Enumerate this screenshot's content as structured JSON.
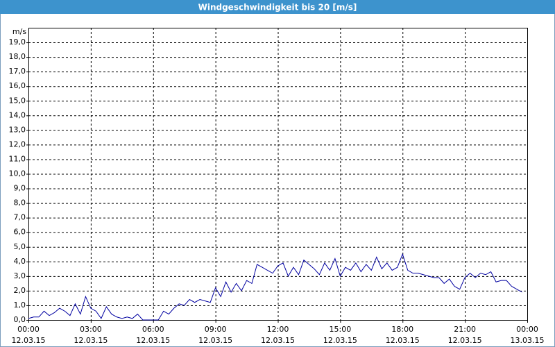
{
  "chart_data": {
    "type": "line",
    "title": "Windgeschwindigkeit bis 20 [m/s]",
    "ylabel": "m/s",
    "x": [
      "12.03.15 00:00",
      "12.03.15 00:15",
      "12.03.15 00:30",
      "12.03.15 00:45",
      "12.03.15 01:00",
      "12.03.15 01:15",
      "12.03.15 01:30",
      "12.03.15 01:45",
      "12.03.15 02:00",
      "12.03.15 02:15",
      "12.03.15 02:30",
      "12.03.15 02:45",
      "12.03.15 03:00",
      "12.03.15 03:15",
      "12.03.15 03:30",
      "12.03.15 03:45",
      "12.03.15 04:00",
      "12.03.15 04:15",
      "12.03.15 04:30",
      "12.03.15 04:45",
      "12.03.15 05:00",
      "12.03.15 05:15",
      "12.03.15 05:30",
      "12.03.15 05:45",
      "12.03.15 06:00",
      "12.03.15 06:15",
      "12.03.15 06:30",
      "12.03.15 06:45",
      "12.03.15 07:00",
      "12.03.15 07:15",
      "12.03.15 07:30",
      "12.03.15 07:45",
      "12.03.15 08:00",
      "12.03.15 08:15",
      "12.03.15 08:30",
      "12.03.15 08:45",
      "12.03.15 09:00",
      "12.03.15 09:15",
      "12.03.15 09:30",
      "12.03.15 09:45",
      "12.03.15 10:00",
      "12.03.15 10:15",
      "12.03.15 10:30",
      "12.03.15 10:45",
      "12.03.15 11:00",
      "12.03.15 11:15",
      "12.03.15 11:30",
      "12.03.15 11:45",
      "12.03.15 12:00",
      "12.03.15 12:15",
      "12.03.15 12:30",
      "12.03.15 12:45",
      "12.03.15 13:00",
      "12.03.15 13:15",
      "12.03.15 13:30",
      "12.03.15 13:45",
      "12.03.15 14:00",
      "12.03.15 14:15",
      "12.03.15 14:30",
      "12.03.15 14:45",
      "12.03.15 15:00",
      "12.03.15 15:15",
      "12.03.15 15:30",
      "12.03.15 15:45",
      "12.03.15 16:00",
      "12.03.15 16:15",
      "12.03.15 16:30",
      "12.03.15 16:45",
      "12.03.15 17:00",
      "12.03.15 17:15",
      "12.03.15 17:30",
      "12.03.15 17:45",
      "12.03.15 18:00",
      "12.03.15 18:15",
      "12.03.15 18:30",
      "12.03.15 18:45",
      "12.03.15 19:00",
      "12.03.15 19:15",
      "12.03.15 19:30",
      "12.03.15 19:45",
      "12.03.15 20:00",
      "12.03.15 20:15",
      "12.03.15 20:30",
      "12.03.15 20:45",
      "12.03.15 21:00",
      "12.03.15 21:15",
      "12.03.15 21:30",
      "12.03.15 21:45",
      "12.03.15 22:00",
      "12.03.15 22:15",
      "12.03.15 22:30",
      "12.03.15 22:45",
      "12.03.15 23:00",
      "12.03.15 23:15",
      "12.03.15 23:30",
      "12.03.15 23:45"
    ],
    "values": [
      0.1,
      0.2,
      0.2,
      0.6,
      0.3,
      0.5,
      0.8,
      0.6,
      0.3,
      1.1,
      0.4,
      1.6,
      0.8,
      0.6,
      0.1,
      0.9,
      0.4,
      0.2,
      0.1,
      0.2,
      0.1,
      0.4,
      0.0,
      0.0,
      0.0,
      0.0,
      0.6,
      0.4,
      0.8,
      1.1,
      1.0,
      1.4,
      1.2,
      1.4,
      1.3,
      1.2,
      2.2,
      1.6,
      2.6,
      1.9,
      2.5,
      2.0,
      2.7,
      2.5,
      3.8,
      3.6,
      3.4,
      3.2,
      3.7,
      3.9,
      3.0,
      3.6,
      3.1,
      4.1,
      3.8,
      3.5,
      3.1,
      3.9,
      3.4,
      4.2,
      3.0,
      3.6,
      3.4,
      3.9,
      3.3,
      3.8,
      3.4,
      4.3,
      3.5,
      3.9,
      3.4,
      3.6,
      4.5,
      3.4,
      3.2,
      3.2,
      3.1,
      3.0,
      2.9,
      2.9,
      2.5,
      2.8,
      2.3,
      2.1,
      2.9,
      3.2,
      2.9,
      3.2,
      3.1,
      3.3,
      2.6,
      2.7,
      2.7,
      2.3,
      2.1,
      1.9
    ],
    "color": "#0000a0",
    "xlim": [
      "12.03.15 00:00",
      "13.03.15 00:00"
    ],
    "xticks": [
      {
        "value": "12.03.15 00:00",
        "label": [
          "00:00",
          "12.03.15"
        ]
      },
      {
        "value": "12.03.15 03:00",
        "label": [
          "03:00",
          "12.03.15"
        ]
      },
      {
        "value": "12.03.15 06:00",
        "label": [
          "06:00",
          "12.03.15"
        ]
      },
      {
        "value": "12.03.15 09:00",
        "label": [
          "09:00",
          "12.03.15"
        ]
      },
      {
        "value": "12.03.15 12:00",
        "label": [
          "12:00",
          "12.03.15"
        ]
      },
      {
        "value": "12.03.15 15:00",
        "label": [
          "15:00",
          "12.03.15"
        ]
      },
      {
        "value": "12.03.15 18:00",
        "label": [
          "18:00",
          "12.03.15"
        ]
      },
      {
        "value": "12.03.15 21:00",
        "label": [
          "21:00",
          "12.03.15"
        ]
      },
      {
        "value": "13.03.15 00:00",
        "label": [
          "00:00",
          "13.03.15"
        ]
      }
    ],
    "ylim": [
      0,
      20
    ],
    "yticks": [
      {
        "value": 0,
        "label": "0,0"
      },
      {
        "value": 1,
        "label": "1,0"
      },
      {
        "value": 2,
        "label": "2,0"
      },
      {
        "value": 3,
        "label": "3,0"
      },
      {
        "value": 4,
        "label": "4,0"
      },
      {
        "value": 5,
        "label": "5,0"
      },
      {
        "value": 6,
        "label": "6,0"
      },
      {
        "value": 7,
        "label": "7,0"
      },
      {
        "value": 8,
        "label": "8,0"
      },
      {
        "value": 9,
        "label": "9,0"
      },
      {
        "value": 10,
        "label": "10,0"
      },
      {
        "value": 11,
        "label": "11,0"
      },
      {
        "value": 12,
        "label": "12,0"
      },
      {
        "value": 13,
        "label": "13,0"
      },
      {
        "value": 14,
        "label": "14,0"
      },
      {
        "value": 15,
        "label": "15,0"
      },
      {
        "value": 16,
        "label": "16,0"
      },
      {
        "value": 17,
        "label": "17,0"
      },
      {
        "value": 18,
        "label": "18,0"
      },
      {
        "value": 19,
        "label": "19,0"
      }
    ],
    "grid": true
  }
}
